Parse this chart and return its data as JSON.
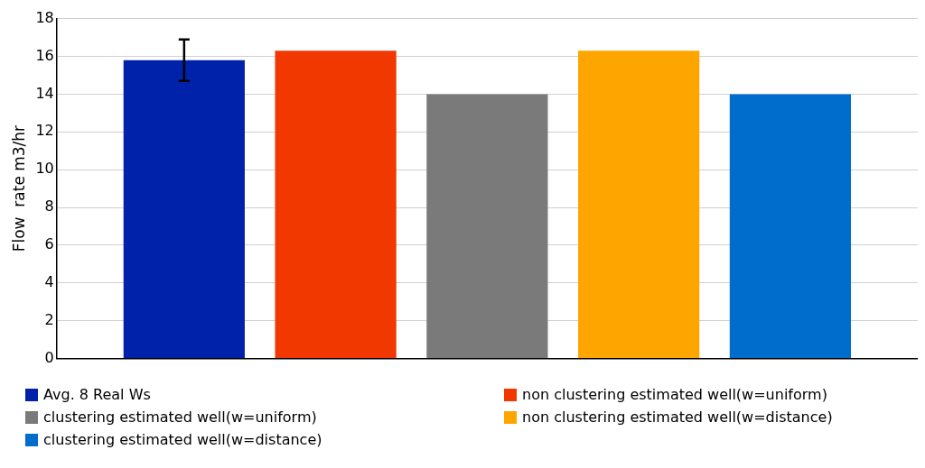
{
  "chart_data": {
    "type": "bar",
    "ylabel": "Flow  rate m3/hr",
    "categories": [
      null
    ],
    "series": [
      {
        "name": "Avg. 8 Real Ws",
        "color": "#0022aa",
        "values": [
          15.8
        ],
        "errors": [
          1.1
        ]
      },
      {
        "name": "non clustering estimated well(w=uniform)",
        "color": "#f03800",
        "values": [
          16.3
        ]
      },
      {
        "name": "clustering estimated well(w=uniform)",
        "color": "#7a7a7a",
        "values": [
          14.0
        ]
      },
      {
        "name": "non clustering estimated well(w=distance)",
        "color": "#ffa500",
        "values": [
          16.3
        ]
      },
      {
        "name": "clustering estimated well(w=distance)",
        "color": "#006ccc",
        "values": [
          14.0
        ]
      }
    ],
    "ylim": [
      0,
      18
    ],
    "yticks": [
      0,
      2,
      4,
      6,
      8,
      10,
      12,
      14,
      16,
      18
    ],
    "grid": "y",
    "legend": "bottom"
  }
}
